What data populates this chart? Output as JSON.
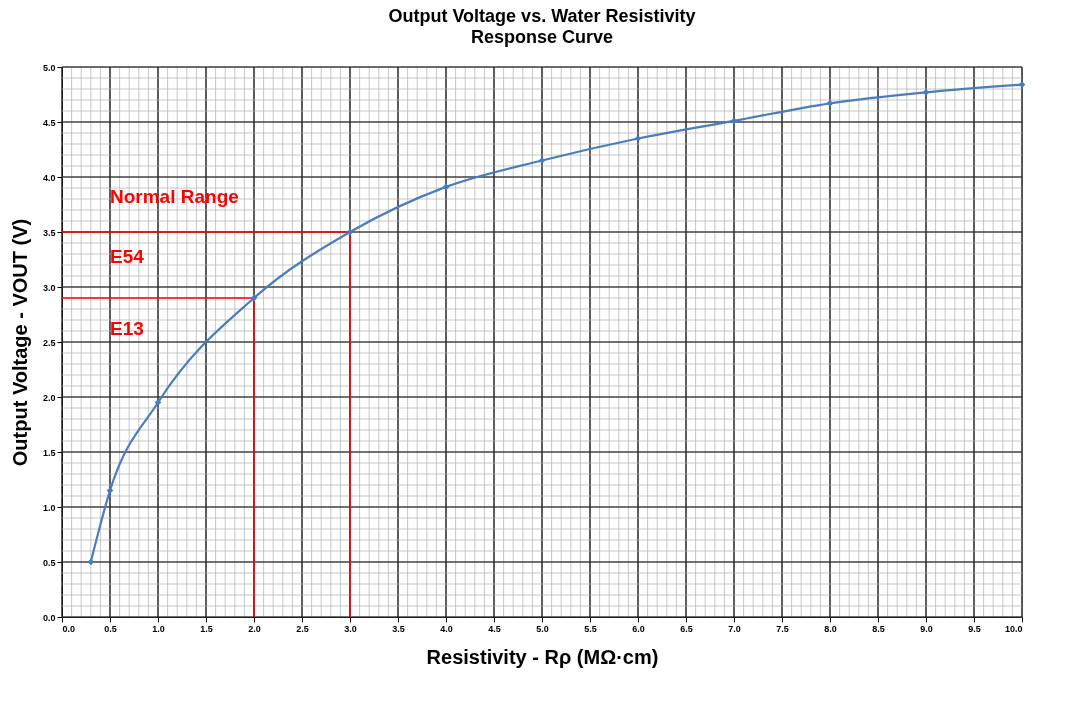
{
  "chart_data": {
    "type": "line",
    "title": "Output Voltage vs. Water Resistivity",
    "subtitle": "Response Curve",
    "xlabel": "Resistivity - Rρ  (MΩ·cm)",
    "ylabel": "Output Voltage - VOUT  (V)",
    "series": [
      {
        "color": "#4a7ebb",
        "x": [
          0.3,
          0.5,
          1,
          2,
          3,
          4,
          5,
          6,
          7,
          8,
          9,
          10
        ],
        "values": [
          0.5,
          1.15,
          1.95,
          2.9,
          3.5,
          3.91,
          4.15,
          4.35,
          4.51,
          4.67,
          4.77,
          4.84
        ],
        "marker": "diamond"
      },
      {
        "color": "#ff0000",
        "x": [
          0,
          3,
          3
        ],
        "values": [
          3.5,
          3.5,
          0
        ],
        "marker": "none"
      },
      {
        "color": "#ff0000",
        "x": [
          0,
          2,
          2
        ],
        "values": [
          2.9,
          2.9,
          0
        ],
        "marker": "none"
      }
    ],
    "annotations": [
      "Normal Range",
      "E54",
      "E13"
    ],
    "xlim": [
      0,
      10
    ],
    "ylim": [
      0,
      5
    ],
    "xticks": [
      {
        "value": 0,
        "label": "0.0"
      },
      {
        "value": 0.5,
        "label": "0.5"
      },
      {
        "value": 1,
        "label": "1.0"
      },
      {
        "value": 1.5,
        "label": "1.5"
      },
      {
        "value": 2,
        "label": "2.0"
      },
      {
        "value": 2.5,
        "label": "2.5"
      },
      {
        "value": 3,
        "label": "3.0"
      },
      {
        "value": 3.5,
        "label": "3.5"
      },
      {
        "value": 4,
        "label": "4.0"
      },
      {
        "value": 4.5,
        "label": "4.5"
      },
      {
        "value": 5,
        "label": "5.0"
      },
      {
        "value": 5.5,
        "label": "5.5"
      },
      {
        "value": 6,
        "label": "6.0"
      },
      {
        "value": 6.5,
        "label": "6.5"
      },
      {
        "value": 7,
        "label": "7.0"
      },
      {
        "value": 7.5,
        "label": "7.5"
      },
      {
        "value": 8,
        "label": "8.0"
      },
      {
        "value": 8.5,
        "label": "8.5"
      },
      {
        "value": 9,
        "label": "9.0"
      },
      {
        "value": 9.5,
        "label": "9.5"
      },
      {
        "value": 10,
        "label": "10.0"
      }
    ],
    "yticks": [
      {
        "value": 0,
        "label": "0.0"
      },
      {
        "value": 0.5,
        "label": "0.5"
      },
      {
        "value": 1,
        "label": "1.0"
      },
      {
        "value": 1.5,
        "label": "1.5"
      },
      {
        "value": 2,
        "label": "2.0"
      },
      {
        "value": 2.5,
        "label": "2.5"
      },
      {
        "value": 3,
        "label": "3.0"
      },
      {
        "value": 3.5,
        "label": "3.5"
      },
      {
        "value": 4,
        "label": "4.0"
      },
      {
        "value": 4.5,
        "label": "4.5"
      },
      {
        "value": 5,
        "label": "5.0"
      }
    ],
    "grid": true
  }
}
